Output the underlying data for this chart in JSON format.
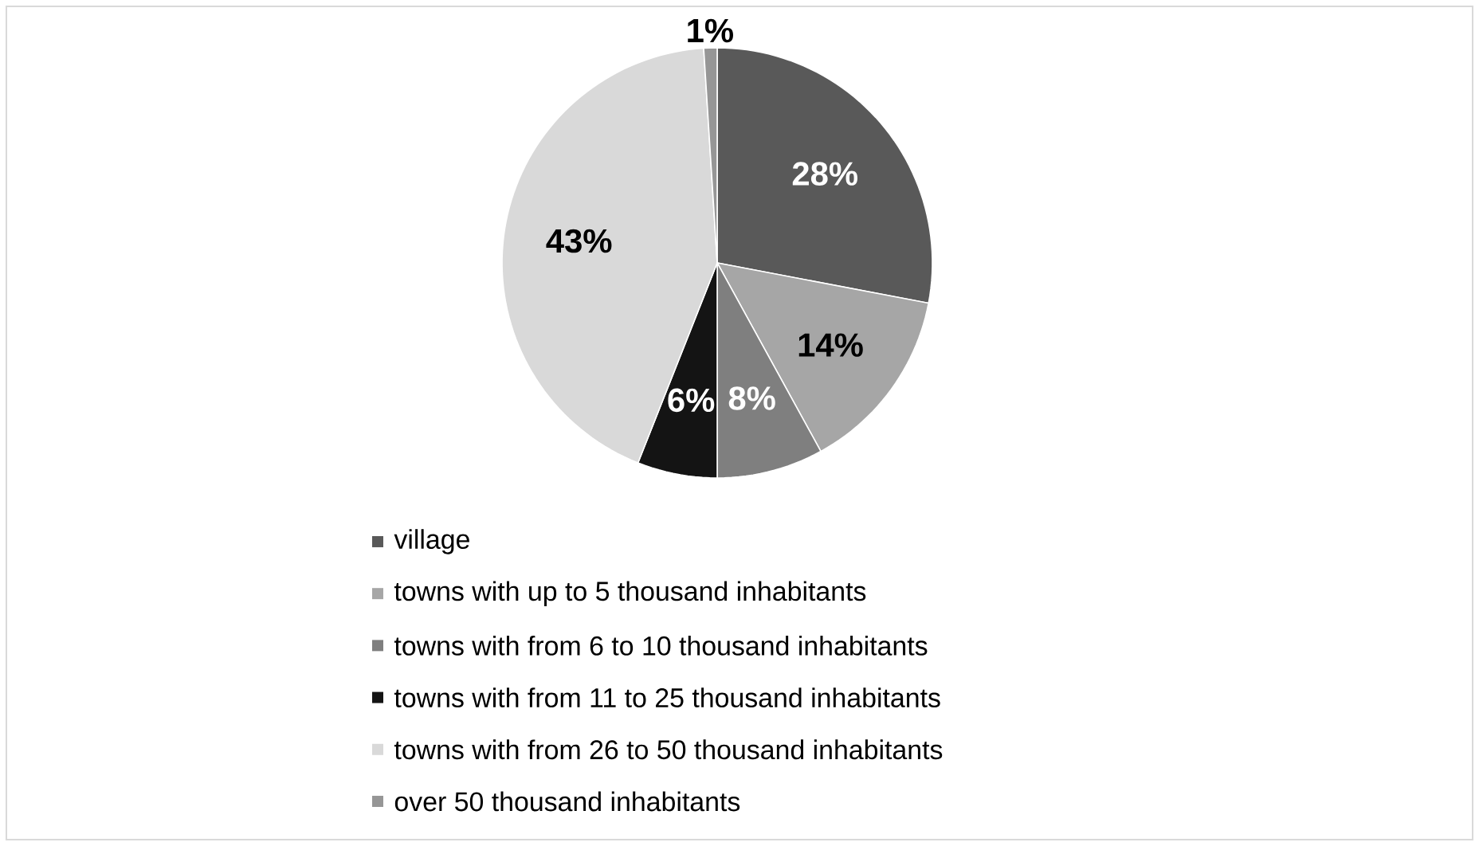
{
  "chart_data": {
    "type": "pie",
    "categories": [
      "village",
      "towns with up to 5 thousand inhabitants",
      "towns with from 6 to 10 thousand inhabitants",
      "towns with from 11 to 25 thousand inhabitants",
      "towns with from 26 to 50 thousand inhabitants",
      "over 50 thousand inhabitants"
    ],
    "values": [
      28,
      14,
      8,
      6,
      43,
      1
    ],
    "colors": [
      "#595959",
      "#a6a6a6",
      "#7f7f7f",
      "#141414",
      "#d9d9d9",
      "#969696"
    ],
    "value_labels": [
      "28%",
      "14%",
      "8%",
      "6%",
      "43%",
      "1%"
    ],
    "legend": "bottom"
  }
}
